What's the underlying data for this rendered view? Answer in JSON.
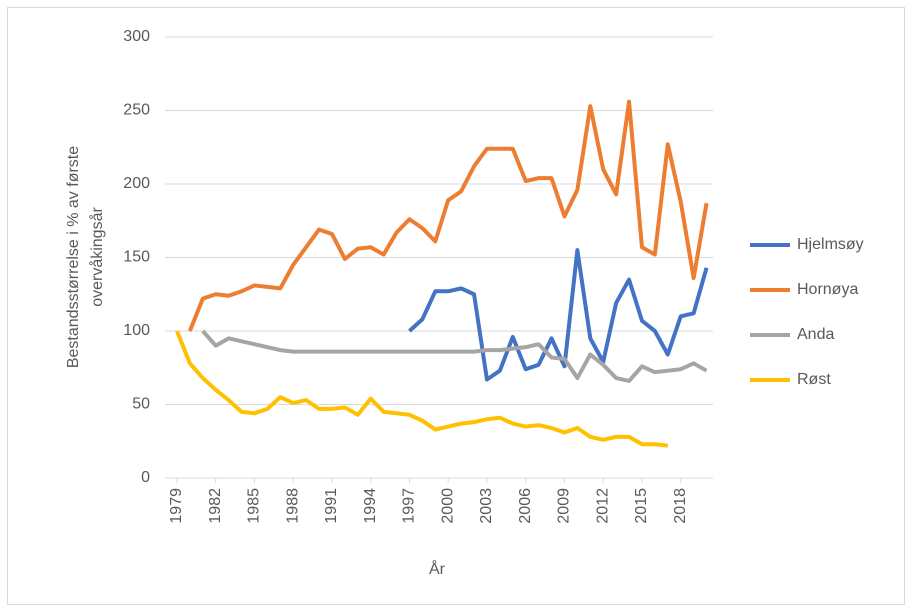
{
  "chart_data": {
    "type": "line",
    "y_label": [
      "Bestandsstørrelse i % av første",
      "overvåkingsår"
    ],
    "x_label": "År",
    "x": [
      1979,
      1980,
      1981,
      1982,
      1983,
      1984,
      1985,
      1986,
      1987,
      1988,
      1989,
      1990,
      1991,
      1992,
      1993,
      1994,
      1995,
      1996,
      1997,
      1998,
      1999,
      2000,
      2001,
      2002,
      2003,
      2004,
      2005,
      2006,
      2007,
      2008,
      2009,
      2010,
      2011,
      2012,
      2013,
      2014,
      2015,
      2016,
      2017,
      2018,
      2019,
      2020
    ],
    "xlim": [
      1978.5,
      2020.5
    ],
    "xticks": [
      1979,
      1982,
      1985,
      1988,
      1991,
      1994,
      1997,
      2000,
      2003,
      2006,
      2009,
      2012,
      2015,
      2018
    ],
    "ylim": [
      0,
      300
    ],
    "yticks": [
      0,
      50,
      100,
      150,
      200,
      250,
      300
    ],
    "grid": true,
    "legend": "right",
    "series": [
      {
        "name": "Hjelmsøy",
        "color": "#4472c4",
        "values": [
          null,
          null,
          null,
          null,
          null,
          null,
          null,
          null,
          null,
          null,
          null,
          null,
          null,
          null,
          null,
          null,
          null,
          null,
          100,
          108,
          127,
          127,
          129,
          125,
          67,
          73,
          96,
          74,
          77,
          95,
          76,
          155,
          95,
          79,
          119,
          135,
          107,
          100,
          84,
          110,
          112,
          143
        ]
      },
      {
        "name": "Hornøya",
        "color": "#ed7d31",
        "values": [
          null,
          100,
          122,
          125,
          124,
          127,
          131,
          130,
          129,
          145,
          157,
          169,
          166,
          149,
          156,
          157,
          152,
          167,
          176,
          170,
          161,
          189,
          195,
          212,
          224,
          224,
          224,
          202,
          204,
          204,
          178,
          196,
          253,
          210,
          193,
          256,
          157,
          152,
          227,
          188,
          136,
          187
        ]
      },
      {
        "name": "Anda",
        "color": "#a5a5a5",
        "values": [
          null,
          null,
          100,
          90,
          95,
          93,
          91,
          89,
          87,
          86,
          86,
          86,
          86,
          86,
          86,
          86,
          86,
          86,
          86,
          86,
          86,
          86,
          86,
          86,
          87,
          87,
          88,
          89,
          91,
          82,
          81,
          68,
          84,
          77,
          68,
          66,
          76,
          72,
          73,
          74,
          78,
          73
        ]
      },
      {
        "name": "Røst",
        "color": "#ffc000",
        "values": [
          100,
          78,
          68,
          60,
          53,
          45,
          44,
          47,
          55,
          51,
          53,
          47,
          47,
          48,
          43,
          54,
          45,
          44,
          43,
          39,
          33,
          35,
          37,
          38,
          40,
          41,
          37,
          35,
          36,
          34,
          31,
          34,
          28,
          26,
          28,
          28,
          23,
          23,
          22,
          null,
          null,
          null
        ]
      }
    ]
  }
}
